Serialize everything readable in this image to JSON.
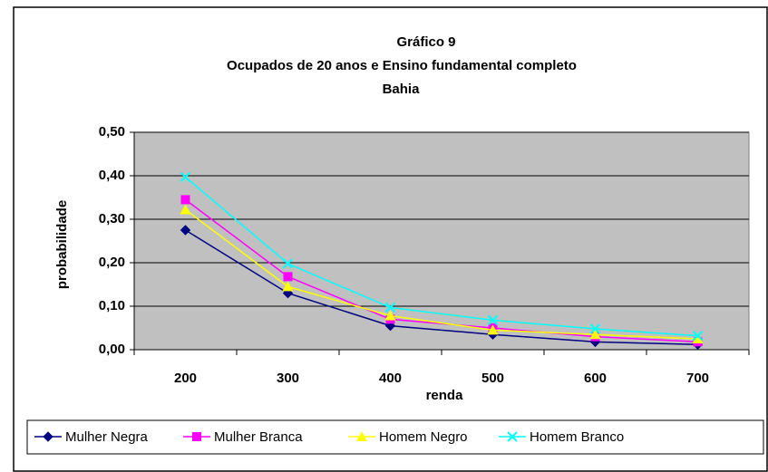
{
  "chart_data": {
    "type": "line",
    "title": "Gráfico 9",
    "subtitle": "Ocupados de 20 anos e Ensino fundamental completo",
    "subtitle2": "Bahia",
    "xlabel": "renda",
    "ylabel": "probabilidade",
    "categories": [
      "200",
      "300",
      "400",
      "500",
      "600",
      "700"
    ],
    "series": [
      {
        "name": "Mulher Negra",
        "color": "#000080",
        "marker": "diamond",
        "values": [
          0.275,
          0.13,
          0.055,
          0.035,
          0.018,
          0.012
        ]
      },
      {
        "name": "Mulher Branca",
        "color": "#FF00FF",
        "marker": "square",
        "values": [
          0.345,
          0.168,
          0.07,
          0.05,
          0.03,
          0.018
        ]
      },
      {
        "name": "Homem Negro",
        "color": "#FFFF00",
        "marker": "triangle",
        "values": [
          0.322,
          0.145,
          0.078,
          0.045,
          0.035,
          0.025
        ]
      },
      {
        "name": "Homem Branco",
        "color": "#00FFFF",
        "marker": "x",
        "values": [
          0.397,
          0.198,
          0.097,
          0.068,
          0.048,
          0.032
        ]
      }
    ],
    "ylim": [
      0,
      0.5
    ],
    "yticks": [
      {
        "value": 0,
        "label": "0,00"
      },
      {
        "value": 0.1,
        "label": "0,10"
      },
      {
        "value": 0.2,
        "label": "0,20"
      },
      {
        "value": 0.3,
        "label": "0,30"
      },
      {
        "value": 0.4,
        "label": "0,40"
      },
      {
        "value": 0.5,
        "label": "0,50"
      }
    ],
    "grid": true,
    "legend": "bottom"
  }
}
